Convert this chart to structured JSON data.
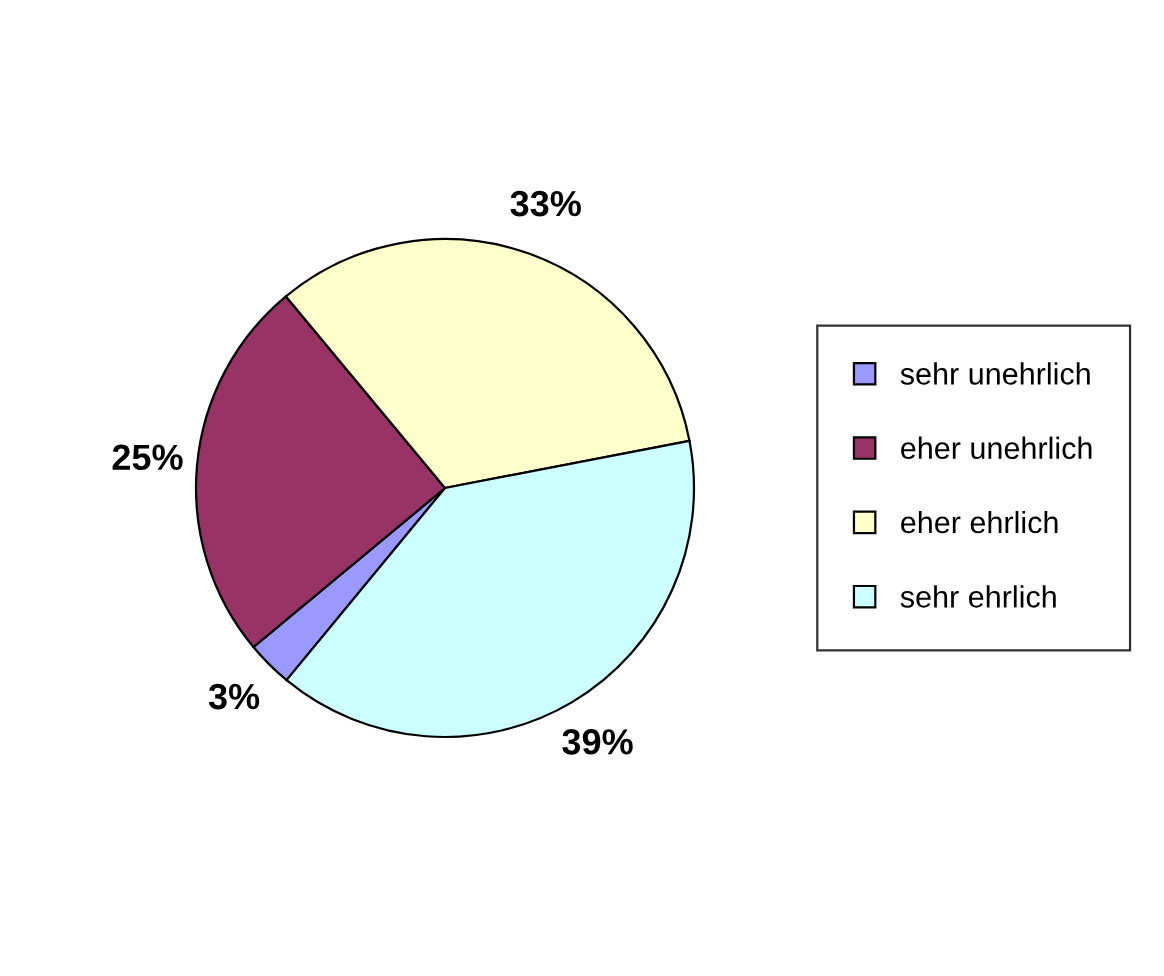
{
  "chart_data": {
    "type": "pie",
    "categories": [
      "sehr unehrlich",
      "eher unehrlich",
      "eher ehrlich",
      "sehr ehrlich"
    ],
    "values": [
      3,
      25,
      33,
      39
    ],
    "colors": [
      "#9999ff",
      "#993366",
      "#ffffcc",
      "#ccffff"
    ],
    "value_labels": [
      "3%",
      "25%",
      "33%",
      "39%"
    ],
    "legend": "right"
  }
}
